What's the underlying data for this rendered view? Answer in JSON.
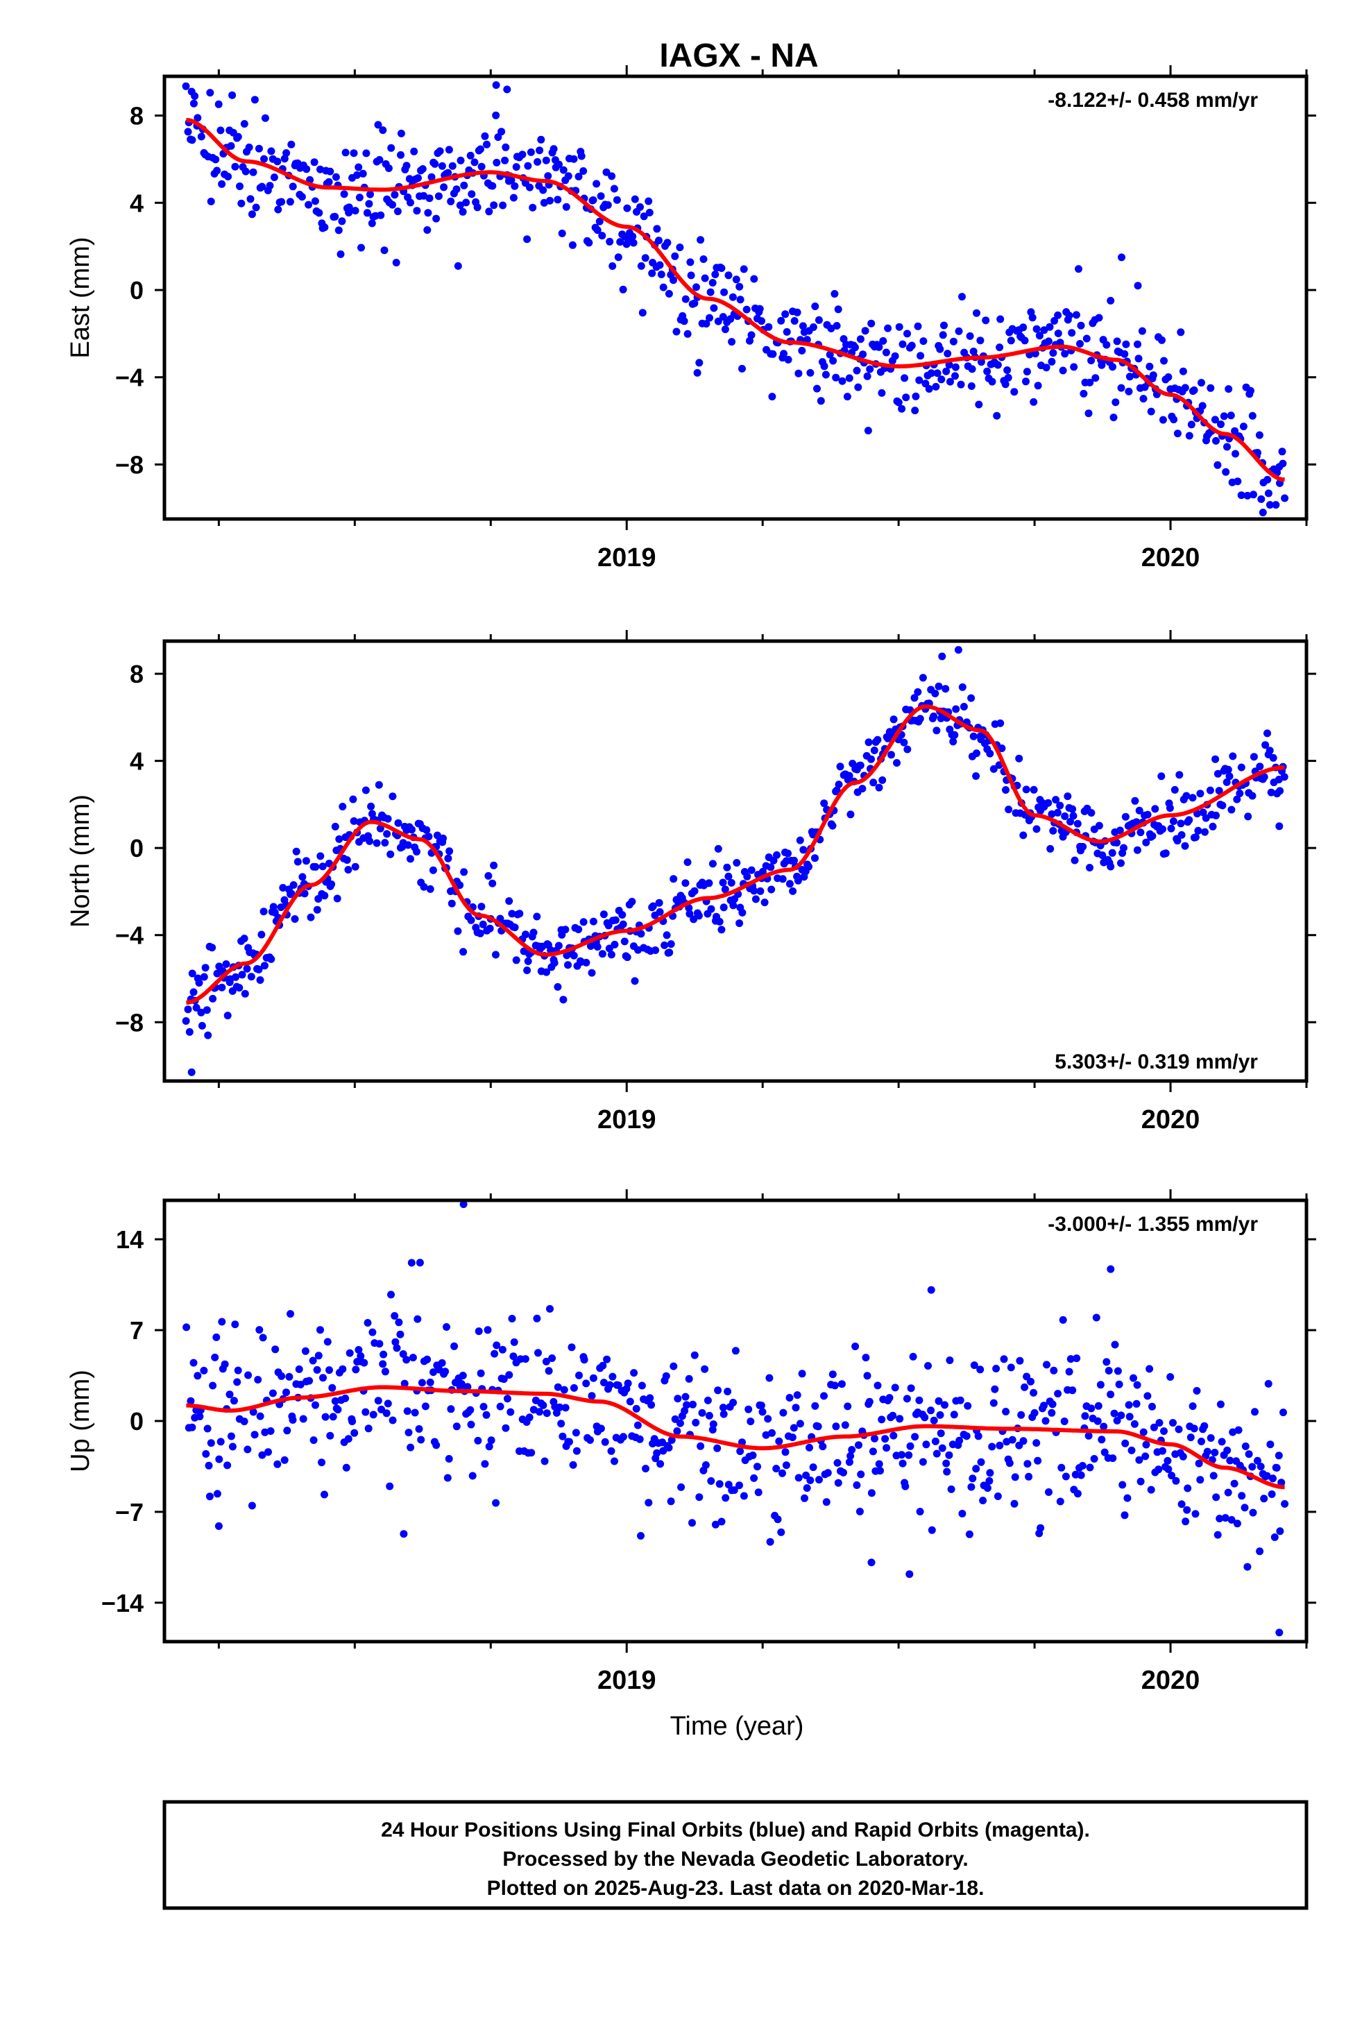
{
  "title": "IAGX - NA",
  "colors": {
    "points": "#0000ff",
    "fit": "#ff0000",
    "axis": "#000000"
  },
  "xlabel": "Time (year)",
  "footer": {
    "line1": "24 Hour Positions Using Final Orbits (blue) and Rapid Orbits (magenta).",
    "line2": "Processed by the Nevada Geodetic Laboratory.",
    "line3": "Plotted on 2025-Aug-23. Last data on 2020-Mar-18."
  },
  "chart_data": [
    {
      "type": "scatter",
      "name": "east",
      "ylabel": "East (mm)",
      "rate": "-8.122+/- 0.458 mm/yr",
      "rate_position": "top-right",
      "xlim": [
        2018.15,
        2020.25
      ],
      "ylim": [
        -10.5,
        9.8
      ],
      "yticks": [
        -8,
        -4,
        0,
        4,
        8
      ],
      "xticks": [
        2019,
        2020
      ],
      "x_minor_ticks": [
        2018.25,
        2018.5,
        2018.75,
        2019.25,
        2019.5,
        2019.75,
        2020.25
      ],
      "data_range": [
        2018.19,
        2020.21
      ],
      "fit_knots": {
        "x": [
          2018.19,
          2018.3,
          2018.45,
          2018.55,
          2018.75,
          2018.85,
          2019.0,
          2019.15,
          2019.3,
          2019.5,
          2019.65,
          2019.8,
          2019.9,
          2020.0,
          2020.1,
          2020.21
        ],
        "y": [
          7.8,
          5.9,
          4.7,
          4.6,
          5.4,
          5.0,
          2.9,
          -0.4,
          -2.4,
          -3.5,
          -3.1,
          -2.6,
          -3.2,
          -4.8,
          -6.6,
          -8.7
        ]
      },
      "scatter": 1.2,
      "n_points": 740,
      "seed": 11,
      "outliers": [
        {
          "x": 2018.76,
          "y": 9.4
        },
        {
          "x": 2018.78,
          "y": 9.2
        },
        {
          "x": 2018.2,
          "y": 9.1
        },
        {
          "x": 2018.69,
          "y": 1.1
        },
        {
          "x": 2019.13,
          "y": -3.8
        },
        {
          "x": 2019.91,
          "y": 1.5
        },
        {
          "x": 2019.94,
          "y": 0.2
        },
        {
          "x": 2020.17,
          "y": -10.2
        }
      ]
    },
    {
      "type": "scatter",
      "name": "north",
      "ylabel": "North (mm)",
      "rate": "5.303+/- 0.319 mm/yr",
      "rate_position": "bottom-right",
      "xlim": [
        2018.15,
        2020.25
      ],
      "ylim": [
        -10.7,
        9.5
      ],
      "yticks": [
        -8,
        -4,
        0,
        4,
        8
      ],
      "xticks": [
        2019,
        2020
      ],
      "x_minor_ticks": [
        2018.25,
        2018.5,
        2018.75,
        2019.25,
        2019.5,
        2019.75,
        2020.25
      ],
      "data_range": [
        2018.19,
        2020.21
      ],
      "fit_knots": {
        "x": [
          2018.19,
          2018.3,
          2018.42,
          2018.53,
          2018.62,
          2018.73,
          2018.85,
          2019.0,
          2019.15,
          2019.3,
          2019.42,
          2019.55,
          2019.65,
          2019.75,
          2019.87,
          2020.0,
          2020.21
        ],
        "y": [
          -7.1,
          -5.3,
          -1.7,
          1.2,
          0.4,
          -3.1,
          -4.9,
          -3.8,
          -2.3,
          -1.0,
          3.0,
          6.5,
          5.4,
          1.5,
          0.3,
          1.5,
          3.7
        ]
      },
      "scatter": 0.8,
      "n_points": 740,
      "seed": 23,
      "outliers": [
        {
          "x": 2018.2,
          "y": -10.3
        },
        {
          "x": 2018.23,
          "y": -8.6
        },
        {
          "x": 2019.61,
          "y": 9.1
        },
        {
          "x": 2020.2,
          "y": 1.0
        },
        {
          "x": 2019.58,
          "y": 8.8
        }
      ]
    },
    {
      "type": "scatter",
      "name": "up",
      "ylabel": "Up (mm)",
      "rate": "-3.000+/- 1.355 mm/yr",
      "rate_position": "top-right",
      "xlim": [
        2018.15,
        2020.25
      ],
      "ylim": [
        -17,
        17
      ],
      "yticks": [
        -14,
        -7,
        0,
        7,
        14
      ],
      "xticks": [
        2019,
        2020
      ],
      "x_minor_ticks": [
        2018.25,
        2018.5,
        2018.75,
        2019.25,
        2019.5,
        2019.75,
        2020.25
      ],
      "data_range": [
        2018.19,
        2020.21
      ],
      "fit_knots": {
        "x": [
          2018.19,
          2018.27,
          2018.4,
          2018.55,
          2018.7,
          2018.85,
          2018.95,
          2019.1,
          2019.25,
          2019.4,
          2019.55,
          2019.7,
          2019.9,
          2020.0,
          2020.1,
          2020.21
        ],
        "y": [
          1.2,
          0.8,
          1.8,
          2.6,
          2.3,
          2.1,
          1.5,
          -1.2,
          -2.1,
          -1.2,
          -0.4,
          -0.6,
          -0.8,
          -1.8,
          -3.6,
          -5.1
        ]
      },
      "scatter": 3.2,
      "n_points": 740,
      "seed": 37,
      "outliers": [
        {
          "x": 2018.7,
          "y": 16.7
        },
        {
          "x": 2018.62,
          "y": 12.2
        },
        {
          "x": 2019.89,
          "y": 11.7
        },
        {
          "x": 2020.2,
          "y": -16.3
        },
        {
          "x": 2019.52,
          "y": -11.8
        },
        {
          "x": 2018.59,
          "y": -8.7
        },
        {
          "x": 2018.25,
          "y": -8.1
        },
        {
          "x": 2019.56,
          "y": 10.1
        },
        {
          "x": 2019.45,
          "y": -10.9
        }
      ]
    }
  ]
}
